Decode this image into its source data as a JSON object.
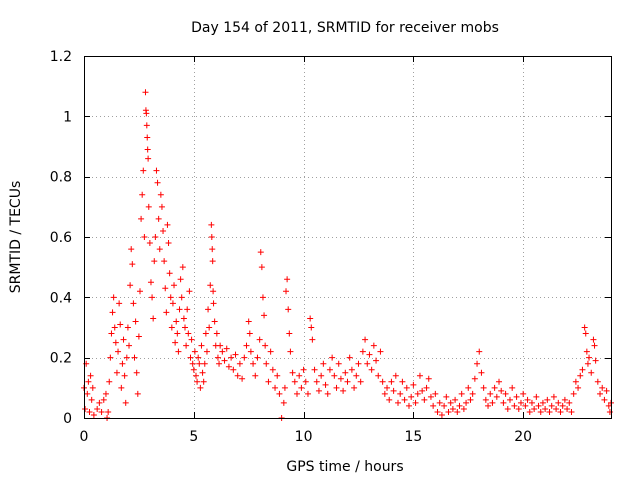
{
  "chart_data": {
    "type": "scatter",
    "title": "Day 154 of 2011, SRMTID for receiver mobs",
    "xlabel": "GPS time / hours",
    "ylabel": "SRMTID / TECUs",
    "xlim": [
      0,
      24
    ],
    "ylim": [
      0,
      1.2
    ],
    "xticks": [
      0,
      5,
      10,
      15,
      20
    ],
    "yticks": [
      0,
      0.2,
      0.4,
      0.6,
      0.8,
      1,
      1.2
    ],
    "xtick_labels": [
      "0",
      "5",
      "10",
      "15",
      "20"
    ],
    "ytick_labels": [
      "0",
      "0.2",
      "0.4",
      "0.6",
      "0.8",
      "1",
      "1.2"
    ],
    "grid": true,
    "marker": "+",
    "color": "#ff0000",
    "series": [
      {
        "points": [
          [
            0.0,
            0.1
          ],
          [
            0.05,
            0.03
          ],
          [
            0.1,
            0.18
          ],
          [
            0.15,
            0.08
          ],
          [
            0.2,
            0.12
          ],
          [
            0.25,
            0.02
          ],
          [
            0.3,
            0.14
          ],
          [
            0.35,
            0.06
          ],
          [
            0.4,
            0.1
          ],
          [
            0.45,
            0.01
          ],
          [
            0.6,
            0.03
          ],
          [
            0.7,
            0.05
          ],
          [
            0.8,
            0.02
          ],
          [
            0.9,
            0.06
          ],
          [
            1.0,
            0.08
          ],
          [
            1.05,
            0.0
          ],
          [
            1.1,
            0.02
          ],
          [
            1.15,
            0.12
          ],
          [
            1.2,
            0.2
          ],
          [
            1.25,
            0.28
          ],
          [
            1.3,
            0.35
          ],
          [
            1.35,
            0.4
          ],
          [
            1.4,
            0.3
          ],
          [
            1.45,
            0.25
          ],
          [
            1.5,
            0.15
          ],
          [
            1.55,
            0.22
          ],
          [
            1.6,
            0.38
          ],
          [
            1.65,
            0.31
          ],
          [
            1.7,
            0.1
          ],
          [
            1.75,
            0.18
          ],
          [
            1.8,
            0.26
          ],
          [
            1.85,
            0.14
          ],
          [
            1.9,
            0.05
          ],
          [
            1.95,
            0.2
          ],
          [
            2.0,
            0.3
          ],
          [
            2.05,
            0.24
          ],
          [
            2.1,
            0.44
          ],
          [
            2.15,
            0.56
          ],
          [
            2.2,
            0.51
          ],
          [
            2.25,
            0.38
          ],
          [
            2.3,
            0.2
          ],
          [
            2.35,
            0.32
          ],
          [
            2.4,
            0.15
          ],
          [
            2.45,
            0.08
          ],
          [
            2.5,
            0.27
          ],
          [
            2.55,
            0.42
          ],
          [
            2.6,
            0.66
          ],
          [
            2.65,
            0.74
          ],
          [
            2.7,
            0.82
          ],
          [
            2.75,
            0.6
          ],
          [
            2.8,
            1.08
          ],
          [
            2.82,
            1.02
          ],
          [
            2.84,
            1.01
          ],
          [
            2.86,
            0.97
          ],
          [
            2.88,
            0.93
          ],
          [
            2.9,
            0.89
          ],
          [
            2.92,
            0.86
          ],
          [
            2.95,
            0.7
          ],
          [
            3.0,
            0.58
          ],
          [
            3.05,
            0.45
          ],
          [
            3.1,
            0.4
          ],
          [
            3.15,
            0.33
          ],
          [
            3.2,
            0.52
          ],
          [
            3.25,
            0.6
          ],
          [
            3.3,
            0.82
          ],
          [
            3.35,
            0.78
          ],
          [
            3.4,
            0.66
          ],
          [
            3.45,
            0.56
          ],
          [
            3.5,
            0.74
          ],
          [
            3.55,
            0.7
          ],
          [
            3.6,
            0.62
          ],
          [
            3.65,
            0.52
          ],
          [
            3.7,
            0.43
          ],
          [
            3.75,
            0.35
          ],
          [
            3.8,
            0.64
          ],
          [
            3.85,
            0.58
          ],
          [
            3.9,
            0.48
          ],
          [
            3.95,
            0.4
          ],
          [
            4.0,
            0.3
          ],
          [
            4.05,
            0.38
          ],
          [
            4.1,
            0.44
          ],
          [
            4.15,
            0.25
          ],
          [
            4.2,
            0.32
          ],
          [
            4.25,
            0.28
          ],
          [
            4.3,
            0.22
          ],
          [
            4.35,
            0.36
          ],
          [
            4.4,
            0.46
          ],
          [
            4.45,
            0.4
          ],
          [
            4.5,
            0.5
          ],
          [
            4.55,
            0.33
          ],
          [
            4.6,
            0.3
          ],
          [
            4.65,
            0.24
          ],
          [
            4.7,
            0.36
          ],
          [
            4.75,
            0.28
          ],
          [
            4.8,
            0.42
          ],
          [
            4.85,
            0.2
          ],
          [
            4.9,
            0.26
          ],
          [
            4.95,
            0.18
          ],
          [
            5.0,
            0.16
          ],
          [
            5.05,
            0.22
          ],
          [
            5.1,
            0.14
          ],
          [
            5.15,
            0.12
          ],
          [
            5.2,
            0.2
          ],
          [
            5.25,
            0.18
          ],
          [
            5.3,
            0.1
          ],
          [
            5.35,
            0.24
          ],
          [
            5.4,
            0.15
          ],
          [
            5.45,
            0.12
          ],
          [
            5.5,
            0.18
          ],
          [
            5.55,
            0.28
          ],
          [
            5.6,
            0.22
          ],
          [
            5.65,
            0.36
          ],
          [
            5.7,
            0.3
          ],
          [
            5.75,
            0.44
          ],
          [
            5.8,
            0.64
          ],
          [
            5.82,
            0.6
          ],
          [
            5.84,
            0.56
          ],
          [
            5.86,
            0.52
          ],
          [
            5.88,
            0.42
          ],
          [
            5.9,
            0.38
          ],
          [
            5.95,
            0.32
          ],
          [
            6.0,
            0.24
          ],
          [
            6.05,
            0.28
          ],
          [
            6.1,
            0.2
          ],
          [
            6.15,
            0.18
          ],
          [
            6.2,
            0.24
          ],
          [
            6.3,
            0.22
          ],
          [
            6.4,
            0.19
          ],
          [
            6.5,
            0.23
          ],
          [
            6.6,
            0.17
          ],
          [
            6.7,
            0.2
          ],
          [
            6.8,
            0.16
          ],
          [
            6.9,
            0.21
          ],
          [
            7.0,
            0.14
          ],
          [
            7.1,
            0.18
          ],
          [
            7.2,
            0.13
          ],
          [
            7.3,
            0.2
          ],
          [
            7.4,
            0.24
          ],
          [
            7.5,
            0.32
          ],
          [
            7.55,
            0.28
          ],
          [
            7.6,
            0.22
          ],
          [
            7.7,
            0.18
          ],
          [
            7.8,
            0.14
          ],
          [
            7.9,
            0.2
          ],
          [
            8.0,
            0.26
          ],
          [
            8.05,
            0.55
          ],
          [
            8.1,
            0.5
          ],
          [
            8.15,
            0.4
          ],
          [
            8.2,
            0.34
          ],
          [
            8.25,
            0.24
          ],
          [
            8.3,
            0.18
          ],
          [
            8.4,
            0.12
          ],
          [
            8.5,
            0.22
          ],
          [
            8.6,
            0.16
          ],
          [
            8.7,
            0.1
          ],
          [
            8.8,
            0.14
          ],
          [
            8.9,
            0.08
          ],
          [
            9.0,
            0.0
          ],
          [
            9.1,
            0.05
          ],
          [
            9.15,
            0.1
          ],
          [
            9.2,
            0.42
          ],
          [
            9.25,
            0.46
          ],
          [
            9.3,
            0.36
          ],
          [
            9.35,
            0.28
          ],
          [
            9.4,
            0.22
          ],
          [
            9.5,
            0.15
          ],
          [
            9.6,
            0.12
          ],
          [
            9.7,
            0.08
          ],
          [
            9.8,
            0.14
          ],
          [
            9.9,
            0.1
          ],
          [
            10.0,
            0.16
          ],
          [
            10.1,
            0.12
          ],
          [
            10.2,
            0.08
          ],
          [
            10.3,
            0.33
          ],
          [
            10.35,
            0.3
          ],
          [
            10.4,
            0.26
          ],
          [
            10.5,
            0.16
          ],
          [
            10.6,
            0.12
          ],
          [
            10.7,
            0.09
          ],
          [
            10.8,
            0.14
          ],
          [
            10.9,
            0.18
          ],
          [
            11.0,
            0.11
          ],
          [
            11.1,
            0.08
          ],
          [
            11.2,
            0.16
          ],
          [
            11.3,
            0.2
          ],
          [
            11.4,
            0.14
          ],
          [
            11.5,
            0.1
          ],
          [
            11.6,
            0.18
          ],
          [
            11.7,
            0.13
          ],
          [
            11.8,
            0.09
          ],
          [
            11.9,
            0.15
          ],
          [
            12.0,
            0.12
          ],
          [
            12.1,
            0.2
          ],
          [
            12.2,
            0.16
          ],
          [
            12.3,
            0.1
          ],
          [
            12.4,
            0.14
          ],
          [
            12.5,
            0.18
          ],
          [
            12.6,
            0.12
          ],
          [
            12.7,
            0.22
          ],
          [
            12.8,
            0.26
          ],
          [
            12.9,
            0.18
          ],
          [
            13.0,
            0.21
          ],
          [
            13.1,
            0.16
          ],
          [
            13.2,
            0.24
          ],
          [
            13.3,
            0.19
          ],
          [
            13.4,
            0.14
          ],
          [
            13.5,
            0.22
          ],
          [
            13.6,
            0.12
          ],
          [
            13.7,
            0.08
          ],
          [
            13.8,
            0.1
          ],
          [
            13.9,
            0.06
          ],
          [
            14.0,
            0.12
          ],
          [
            14.1,
            0.09
          ],
          [
            14.2,
            0.14
          ],
          [
            14.3,
            0.05
          ],
          [
            14.4,
            0.08
          ],
          [
            14.5,
            0.12
          ],
          [
            14.6,
            0.06
          ],
          [
            14.7,
            0.1
          ],
          [
            14.8,
            0.04
          ],
          [
            14.9,
            0.07
          ],
          [
            15.0,
            0.11
          ],
          [
            15.1,
            0.05
          ],
          [
            15.2,
            0.08
          ],
          [
            15.3,
            0.14
          ],
          [
            15.4,
            0.09
          ],
          [
            15.5,
            0.06
          ],
          [
            15.6,
            0.1
          ],
          [
            15.7,
            0.13
          ],
          [
            15.8,
            0.07
          ],
          [
            15.9,
            0.04
          ],
          [
            16.0,
            0.08
          ],
          [
            16.1,
            0.02
          ],
          [
            16.2,
            0.05
          ],
          [
            16.3,
            0.01
          ],
          [
            16.4,
            0.04
          ],
          [
            16.5,
            0.07
          ],
          [
            16.6,
            0.02
          ],
          [
            16.7,
            0.05
          ],
          [
            16.8,
            0.03
          ],
          [
            16.9,
            0.06
          ],
          [
            17.0,
            0.02
          ],
          [
            17.1,
            0.04
          ],
          [
            17.2,
            0.08
          ],
          [
            17.3,
            0.03
          ],
          [
            17.4,
            0.05
          ],
          [
            17.5,
            0.1
          ],
          [
            17.6,
            0.06
          ],
          [
            17.7,
            0.08
          ],
          [
            17.8,
            0.13
          ],
          [
            17.9,
            0.18
          ],
          [
            18.0,
            0.22
          ],
          [
            18.1,
            0.15
          ],
          [
            18.2,
            0.1
          ],
          [
            18.3,
            0.06
          ],
          [
            18.4,
            0.04
          ],
          [
            18.5,
            0.08
          ],
          [
            18.6,
            0.05
          ],
          [
            18.7,
            0.1
          ],
          [
            18.8,
            0.07
          ],
          [
            18.9,
            0.12
          ],
          [
            19.0,
            0.09
          ],
          [
            19.1,
            0.05
          ],
          [
            19.2,
            0.08
          ],
          [
            19.3,
            0.03
          ],
          [
            19.4,
            0.06
          ],
          [
            19.5,
            0.1
          ],
          [
            19.6,
            0.04
          ],
          [
            19.7,
            0.07
          ],
          [
            19.8,
            0.03
          ],
          [
            19.9,
            0.05
          ],
          [
            20.0,
            0.08
          ],
          [
            20.1,
            0.04
          ],
          [
            20.2,
            0.06
          ],
          [
            20.3,
            0.02
          ],
          [
            20.4,
            0.05
          ],
          [
            20.5,
            0.03
          ],
          [
            20.6,
            0.07
          ],
          [
            20.7,
            0.04
          ],
          [
            20.8,
            0.02
          ],
          [
            20.9,
            0.05
          ],
          [
            21.0,
            0.03
          ],
          [
            21.1,
            0.06
          ],
          [
            21.2,
            0.02
          ],
          [
            21.3,
            0.04
          ],
          [
            21.4,
            0.07
          ],
          [
            21.5,
            0.03
          ],
          [
            21.6,
            0.05
          ],
          [
            21.7,
            0.02
          ],
          [
            21.8,
            0.04
          ],
          [
            21.9,
            0.06
          ],
          [
            22.0,
            0.03
          ],
          [
            22.1,
            0.05
          ],
          [
            22.2,
            0.02
          ],
          [
            22.3,
            0.08
          ],
          [
            22.4,
            0.12
          ],
          [
            22.5,
            0.1
          ],
          [
            22.6,
            0.14
          ],
          [
            22.7,
            0.16
          ],
          [
            22.8,
            0.3
          ],
          [
            22.85,
            0.28
          ],
          [
            22.9,
            0.22
          ],
          [
            22.95,
            0.18
          ],
          [
            23.0,
            0.2
          ],
          [
            23.1,
            0.15
          ],
          [
            23.2,
            0.26
          ],
          [
            23.25,
            0.24
          ],
          [
            23.3,
            0.19
          ],
          [
            23.4,
            0.12
          ],
          [
            23.5,
            0.08
          ],
          [
            23.6,
            0.1
          ],
          [
            23.7,
            0.06
          ],
          [
            23.8,
            0.09
          ],
          [
            23.9,
            0.04
          ],
          [
            23.95,
            0.02
          ],
          [
            24.0,
            0.05
          ]
        ]
      }
    ]
  }
}
